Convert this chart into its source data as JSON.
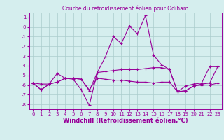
{
  "title": "Courbe du refroidissement éolien pour Odiham",
  "xlabel": "Windchill (Refroidissement éolien,°C)",
  "x": [
    0,
    1,
    2,
    3,
    4,
    5,
    6,
    7,
    8,
    9,
    10,
    11,
    12,
    13,
    14,
    15,
    16,
    17,
    18,
    19,
    20,
    21,
    22,
    23
  ],
  "line1": [
    -5.8,
    -6.5,
    -5.9,
    -4.8,
    -5.3,
    -5.4,
    -6.5,
    -8.1,
    -4.7,
    -3.1,
    -1.0,
    -1.7,
    0.1,
    -0.7,
    1.2,
    -2.9,
    -3.9,
    -4.4,
    -6.7,
    -6.1,
    -5.9,
    -5.8,
    -4.1,
    -4.1
  ],
  "line2": [
    -5.8,
    -6.5,
    -5.9,
    -5.7,
    -5.3,
    -5.3,
    -5.4,
    -6.6,
    -4.7,
    -4.6,
    -4.5,
    -4.4,
    -4.4,
    -4.4,
    -4.3,
    -4.2,
    -4.2,
    -4.4,
    -6.7,
    -6.6,
    -6.1,
    -5.9,
    -5.8,
    -4.1
  ],
  "line3": [
    -5.8,
    -5.9,
    -5.9,
    -5.7,
    -5.3,
    -5.3,
    -5.4,
    -6.5,
    -5.3,
    -5.4,
    -5.5,
    -5.5,
    -5.6,
    -5.7,
    -5.7,
    -5.8,
    -5.7,
    -5.7,
    -6.7,
    -6.6,
    -6.1,
    -6.0,
    -6.0,
    -5.8
  ],
  "line_color": "#990099",
  "bg_color": "#d5eeee",
  "grid_color": "#aacccc",
  "ylim": [
    -8.5,
    1.5
  ],
  "xlim": [
    -0.5,
    23.5
  ],
  "yticks": [
    1,
    0,
    -1,
    -2,
    -3,
    -4,
    -5,
    -6,
    -7,
    -8
  ],
  "xticks": [
    0,
    1,
    2,
    3,
    4,
    5,
    6,
    7,
    8,
    9,
    10,
    11,
    12,
    13,
    14,
    15,
    16,
    17,
    18,
    19,
    20,
    21,
    22,
    23
  ],
  "tick_fontsize": 5.0,
  "xlabel_fontsize": 6.0,
  "title_fontsize": 5.5
}
